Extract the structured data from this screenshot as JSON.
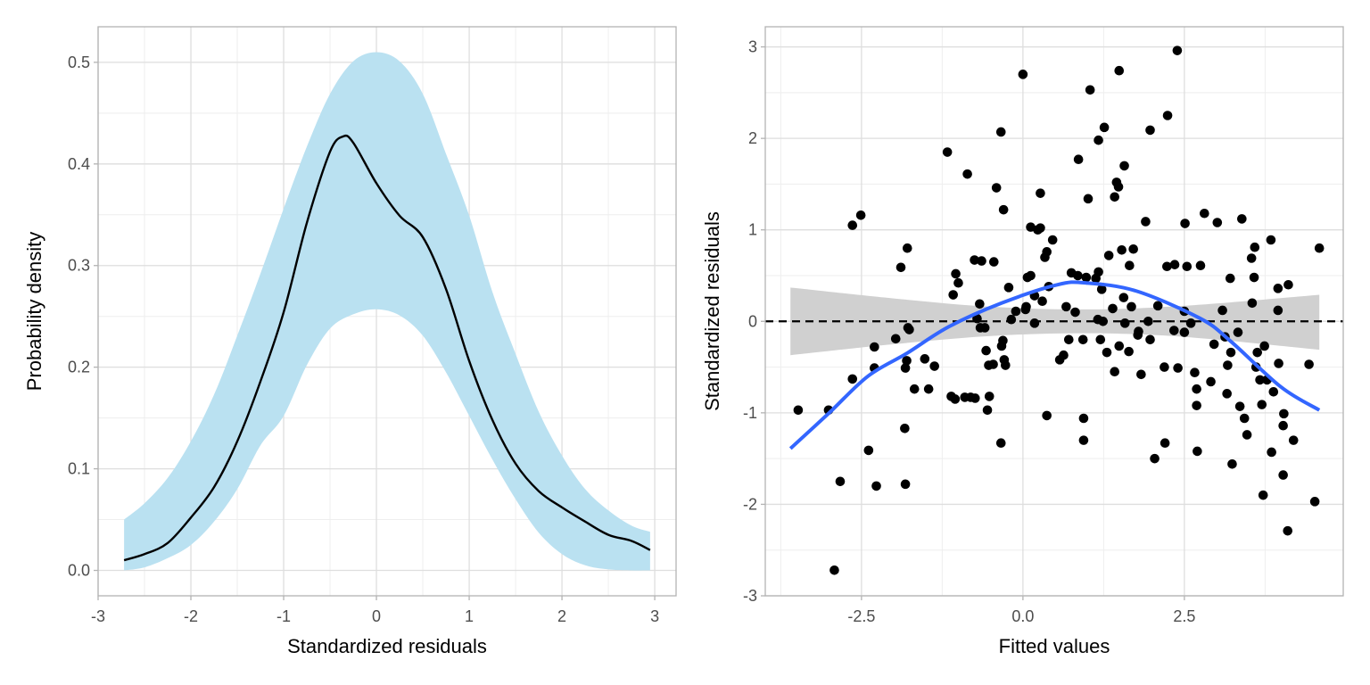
{
  "colors": {
    "band_fill": "#bae1f1",
    "density_line": "#000000",
    "smooth_line": "#3366ff",
    "ci_fill": "#d0d0d0",
    "points": "#000000",
    "grid_major": "#dedede",
    "grid_minor": "#eeeeee",
    "panel_border": "#b3b3b3",
    "tick_text": "#4d4d4d"
  },
  "chart_data": [
    {
      "type": "area",
      "title": "",
      "xlabel": "Standardized residuals",
      "ylabel": "Probability density",
      "xlim": [
        -3,
        3.23
      ],
      "ylim": [
        -0.025,
        0.535
      ],
      "grid": true,
      "xticks": [
        "-3",
        "-2",
        "-1",
        "0",
        "1",
        "2",
        "3"
      ],
      "yticks": [
        "0.0",
        "0.1",
        "0.2",
        "0.3",
        "0.4",
        "0.5"
      ],
      "density": {
        "x": [
          -2.72,
          -2.5,
          -2.25,
          -2,
          -1.75,
          -1.5,
          -1.25,
          -1,
          -0.75,
          -0.5,
          -0.36,
          -0.25,
          0,
          0.25,
          0.5,
          0.75,
          1,
          1.25,
          1.5,
          1.75,
          2,
          2.25,
          2.5,
          2.75,
          2.95
        ],
        "y": [
          0.01,
          0.016,
          0.027,
          0.052,
          0.082,
          0.127,
          0.186,
          0.254,
          0.342,
          0.412,
          0.427,
          0.421,
          0.381,
          0.349,
          0.328,
          0.277,
          0.206,
          0.148,
          0.105,
          0.078,
          0.062,
          0.048,
          0.035,
          0.029,
          0.02
        ]
      },
      "band": {
        "x": [
          -2.72,
          -2.5,
          -2.25,
          -2,
          -1.75,
          -1.5,
          -1.25,
          -1,
          -0.75,
          -0.5,
          -0.25,
          0,
          0.25,
          0.5,
          0.75,
          1,
          1.25,
          1.5,
          1.75,
          2,
          2.25,
          2.5,
          2.75,
          2.95
        ],
        "upper": [
          0.05,
          0.066,
          0.091,
          0.127,
          0.173,
          0.231,
          0.292,
          0.356,
          0.417,
          0.469,
          0.501,
          0.51,
          0.501,
          0.469,
          0.41,
          0.349,
          0.274,
          0.213,
          0.156,
          0.113,
          0.08,
          0.059,
          0.044,
          0.038
        ],
        "lower": [
          0,
          0.003,
          0.012,
          0.025,
          0.048,
          0.08,
          0.123,
          0.152,
          0.202,
          0.238,
          0.252,
          0.257,
          0.251,
          0.231,
          0.195,
          0.152,
          0.109,
          0.07,
          0.037,
          0.016,
          0.005,
          0.001,
          0,
          0
        ]
      }
    },
    {
      "type": "scatter",
      "title": "",
      "xlabel": "Fitted values",
      "ylabel": "Standardized residuals",
      "xlim": [
        -3.99,
        4.96
      ],
      "ylim": [
        -3,
        3.22
      ],
      "grid": true,
      "xticks": [
        "-2.5",
        "0.0",
        "2.5"
      ],
      "yticks": [
        "-3",
        "-2",
        "-1",
        "0",
        "1",
        "2",
        "3"
      ],
      "reference_line": {
        "y": 0,
        "style": "dashed"
      },
      "points": [
        [
          -3.48,
          -0.97
        ],
        [
          -3.01,
          -0.97
        ],
        [
          -2.83,
          -1.75
        ],
        [
          -2.92,
          -2.72
        ],
        [
          -2.64,
          1.05
        ],
        [
          -2.51,
          1.16
        ],
        [
          -2.64,
          -0.63
        ],
        [
          -2.39,
          -1.41
        ],
        [
          -2.3,
          -0.28
        ],
        [
          -2.27,
          -1.8
        ],
        [
          -2.3,
          -0.51
        ],
        [
          -1.97,
          -0.19
        ],
        [
          -1.89,
          0.59
        ],
        [
          -1.8,
          -0.43
        ],
        [
          -1.82,
          -0.51
        ],
        [
          -1.79,
          0.8
        ],
        [
          -1.83,
          -1.17
        ],
        [
          -1.82,
          -1.78
        ],
        [
          -1.76,
          -0.09
        ],
        [
          -1.78,
          -0.07
        ],
        [
          -1.68,
          -0.74
        ],
        [
          -1.52,
          -0.41
        ],
        [
          -1.46,
          -0.74
        ],
        [
          -1.37,
          -0.49
        ],
        [
          -1.17,
          1.85
        ],
        [
          -1.11,
          -0.82
        ],
        [
          -1.08,
          0.29
        ],
        [
          -1.05,
          -0.85
        ],
        [
          -1.04,
          0.52
        ],
        [
          -1.0,
          0.42
        ],
        [
          -0.9,
          -0.83
        ],
        [
          -0.86,
          1.61
        ],
        [
          -0.81,
          -0.83
        ],
        [
          -0.75,
          0.67
        ],
        [
          -0.74,
          -0.84
        ],
        [
          -0.71,
          0.03
        ],
        [
          -0.67,
          0.19
        ],
        [
          -0.66,
          -0.07
        ],
        [
          -0.64,
          0.66
        ],
        [
          -0.59,
          -0.07
        ],
        [
          -0.57,
          -0.32
        ],
        [
          -0.55,
          -0.97
        ],
        [
          -0.53,
          -0.48
        ],
        [
          -0.46,
          -0.47
        ],
        [
          -0.45,
          0.65
        ],
        [
          -0.41,
          1.46
        ],
        [
          -0.52,
          -0.82
        ],
        [
          -0.34,
          -1.33
        ],
        [
          -0.34,
          2.07
        ],
        [
          -0.31,
          -0.21
        ],
        [
          -0.33,
          -0.27
        ],
        [
          -0.3,
          1.22
        ],
        [
          -0.29,
          -0.42
        ],
        [
          -0.27,
          -0.48
        ],
        [
          -0.22,
          0.37
        ],
        [
          -0.18,
          0.02
        ],
        [
          -0.11,
          0.11
        ],
        [
          0.0,
          2.7
        ],
        [
          0.04,
          0.13
        ],
        [
          0.05,
          0.16
        ],
        [
          0.07,
          0.48
        ],
        [
          0.12,
          1.03
        ],
        [
          0.12,
          0.5
        ],
        [
          0.18,
          -0.02
        ],
        [
          0.18,
          0.28
        ],
        [
          0.23,
          1.0
        ],
        [
          0.27,
          1.4
        ],
        [
          0.27,
          1.02
        ],
        [
          0.3,
          0.22
        ],
        [
          0.34,
          0.7
        ],
        [
          0.37,
          0.76
        ],
        [
          0.4,
          0.38
        ],
        [
          0.37,
          -1.03
        ],
        [
          0.46,
          0.89
        ],
        [
          0.57,
          -0.42
        ],
        [
          0.63,
          -0.37
        ],
        [
          0.67,
          0.16
        ],
        [
          0.75,
          0.53
        ],
        [
          0.71,
          -0.2
        ],
        [
          0.81,
          0.1
        ],
        [
          0.85,
          0.5
        ],
        [
          0.98,
          0.48
        ],
        [
          0.86,
          1.77
        ],
        [
          0.93,
          -0.2
        ],
        [
          0.94,
          -1.06
        ],
        [
          0.94,
          -1.3
        ],
        [
          1.01,
          1.34
        ],
        [
          1.04,
          2.53
        ],
        [
          1.13,
          0.47
        ],
        [
          1.16,
          0.02
        ],
        [
          1.17,
          0.54
        ],
        [
          1.17,
          1.98
        ],
        [
          1.2,
          -0.2
        ],
        [
          1.24,
          0.0
        ],
        [
          1.22,
          0.35
        ],
        [
          1.26,
          2.12
        ],
        [
          1.33,
          0.72
        ],
        [
          1.3,
          -0.34
        ],
        [
          1.39,
          0.14
        ],
        [
          1.42,
          -0.55
        ],
        [
          1.42,
          1.36
        ],
        [
          1.49,
          2.74
        ],
        [
          1.48,
          1.47
        ],
        [
          1.49,
          -0.27
        ],
        [
          1.45,
          1.52
        ],
        [
          1.53,
          0.78
        ],
        [
          1.56,
          0.26
        ],
        [
          1.57,
          1.7
        ],
        [
          1.58,
          -0.02
        ],
        [
          1.65,
          0.61
        ],
        [
          1.64,
          -0.33
        ],
        [
          1.68,
          0.16
        ],
        [
          1.71,
          0.79
        ],
        [
          1.79,
          -0.11
        ],
        [
          1.78,
          -0.15
        ],
        [
          1.83,
          -0.58
        ],
        [
          1.9,
          1.09
        ],
        [
          1.97,
          -0.2
        ],
        [
          1.94,
          0.0
        ],
        [
          1.97,
          2.09
        ],
        [
          2.09,
          0.17
        ],
        [
          2.04,
          -1.5
        ],
        [
          2.2,
          -1.33
        ],
        [
          2.19,
          -0.5
        ],
        [
          2.23,
          0.6
        ],
        [
          2.24,
          2.25
        ],
        [
          2.34,
          -0.1
        ],
        [
          2.35,
          0.62
        ],
        [
          2.39,
          2.96
        ],
        [
          2.4,
          -0.51
        ],
        [
          2.5,
          -0.12
        ],
        [
          2.51,
          1.07
        ],
        [
          2.54,
          0.6
        ],
        [
          2.5,
          0.11
        ],
        [
          2.6,
          -0.02
        ],
        [
          2.66,
          -0.56
        ],
        [
          2.69,
          -0.74
        ],
        [
          2.69,
          -0.92
        ],
        [
          2.7,
          -1.42
        ],
        [
          2.75,
          0.61
        ],
        [
          2.81,
          1.18
        ],
        [
          2.91,
          -0.66
        ],
        [
          2.96,
          -0.25
        ],
        [
          3.01,
          1.08
        ],
        [
          3.09,
          0.12
        ],
        [
          3.13,
          -0.17
        ],
        [
          3.16,
          -0.79
        ],
        [
          3.17,
          -0.48
        ],
        [
          3.21,
          0.47
        ],
        [
          3.24,
          -1.56
        ],
        [
          3.22,
          -0.34
        ],
        [
          3.33,
          -0.12
        ],
        [
          3.36,
          -0.93
        ],
        [
          3.39,
          1.12
        ],
        [
          3.43,
          -1.06
        ],
        [
          3.47,
          -1.24
        ],
        [
          3.58,
          0.48
        ],
        [
          3.55,
          0.2
        ],
        [
          3.61,
          -0.5
        ],
        [
          3.59,
          0.81
        ],
        [
          3.54,
          0.69
        ],
        [
          3.63,
          -0.34
        ],
        [
          3.67,
          -0.64
        ],
        [
          3.7,
          -0.91
        ],
        [
          3.74,
          -0.27
        ],
        [
          3.72,
          -1.9
        ],
        [
          3.78,
          -0.64
        ],
        [
          3.84,
          0.89
        ],
        [
          3.88,
          -0.77
        ],
        [
          3.85,
          -1.43
        ],
        [
          3.95,
          0.12
        ],
        [
          3.96,
          -0.46
        ],
        [
          4.03,
          -1.68
        ],
        [
          4.04,
          -1.01
        ],
        [
          3.95,
          0.36
        ],
        [
          4.11,
          0.4
        ],
        [
          4.1,
          -2.29
        ],
        [
          4.03,
          -1.14
        ],
        [
          4.19,
          -1.3
        ],
        [
          4.43,
          -0.47
        ],
        [
          4.52,
          -1.97
        ],
        [
          4.59,
          0.8
        ]
      ],
      "smooth": {
        "x": [
          -3.6,
          -3.0,
          -2.4,
          -1.8,
          -1.15,
          -0.33,
          0.53,
          0.98,
          1.76,
          2.75,
          3.22,
          4.0,
          4.59
        ],
        "y": [
          -1.39,
          -1.0,
          -0.6,
          -0.35,
          -0.06,
          0.2,
          0.4,
          0.42,
          0.33,
          0.03,
          -0.22,
          -0.72,
          -0.97
        ]
      },
      "ci": {
        "x": [
          -3.6,
          -2.0,
          -0.5,
          1.0,
          2.5,
          4.59
        ],
        "upper": [
          0.37,
          0.25,
          0.16,
          0.13,
          0.17,
          0.29
        ],
        "lower": [
          -0.37,
          -0.25,
          -0.16,
          -0.13,
          -0.17,
          -0.31
        ]
      }
    }
  ]
}
